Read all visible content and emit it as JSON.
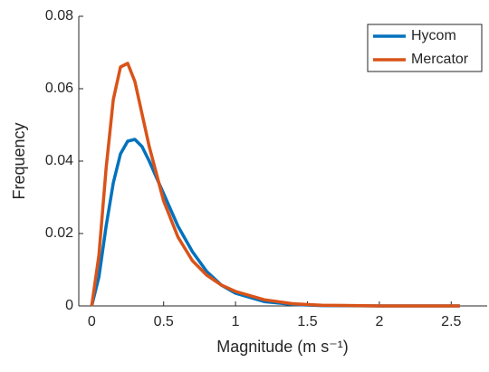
{
  "chart_data": {
    "type": "line",
    "x_label": "Magnitude (m s⁻¹)",
    "y_label": "Frequency",
    "x": [
      0,
      0.05,
      0.1,
      0.15,
      0.2,
      0.25,
      0.3,
      0.35,
      0.4,
      0.5,
      0.6,
      0.7,
      0.8,
      0.9,
      1.0,
      1.2,
      1.4,
      1.6,
      2.0,
      2.56
    ],
    "series": [
      {
        "name": "Hycom",
        "color": "#0072bd",
        "values": [
          0,
          0.008,
          0.022,
          0.034,
          0.042,
          0.0455,
          0.046,
          0.044,
          0.04,
          0.031,
          0.022,
          0.015,
          0.0095,
          0.0058,
          0.0035,
          0.0012,
          0.0004,
          0.0001,
          0,
          0
        ]
      },
      {
        "name": "Mercator",
        "color": "#d95319",
        "values": [
          0,
          0.014,
          0.038,
          0.057,
          0.066,
          0.067,
          0.062,
          0.053,
          0.044,
          0.029,
          0.019,
          0.0125,
          0.0085,
          0.0058,
          0.004,
          0.0017,
          0.0006,
          0.0002,
          0,
          0
        ]
      }
    ],
    "xlim": [
      -0.09,
      2.75
    ],
    "ylim": [
      0,
      0.08
    ],
    "xticks": [
      0,
      0.5,
      1,
      1.5,
      2,
      2.5
    ],
    "yticks": [
      0,
      0.02,
      0.04,
      0.06,
      0.08
    ],
    "legend": "top-right"
  }
}
